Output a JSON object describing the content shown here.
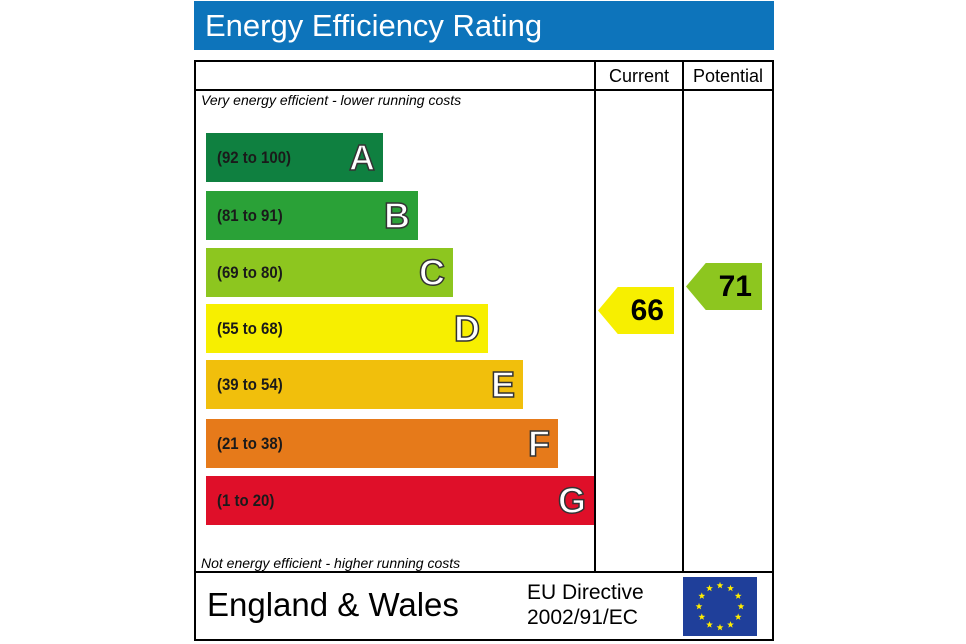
{
  "header": {
    "title": "Energy Efficiency Rating"
  },
  "columns": {
    "current": "Current",
    "potential": "Potential"
  },
  "notes": {
    "top": "Very energy efficient - lower running costs",
    "bottom": "Not energy efficient - higher running costs"
  },
  "footer": {
    "region": "England & Wales",
    "directive_line1": "EU Directive",
    "directive_line2": "2002/91/EC"
  },
  "chart_data": {
    "type": "bar",
    "title": "Energy Efficiency Rating",
    "bands": [
      {
        "letter": "A",
        "range": "(92 to 100)",
        "min": 92,
        "max": 100,
        "color": "#0f8040"
      },
      {
        "letter": "B",
        "range": "(81 to 91)",
        "min": 81,
        "max": 91,
        "color": "#2aa137"
      },
      {
        "letter": "C",
        "range": "(69 to 80)",
        "min": 69,
        "max": 80,
        "color": "#8dc61f"
      },
      {
        "letter": "D",
        "range": "(55 to 68)",
        "min": 55,
        "max": 68,
        "color": "#f7ef00"
      },
      {
        "letter": "E",
        "range": "(39 to 54)",
        "min": 39,
        "max": 54,
        "color": "#f1bf0c"
      },
      {
        "letter": "F",
        "range": "(21 to 38)",
        "min": 21,
        "max": 38,
        "color": "#e67a1a"
      },
      {
        "letter": "G",
        "range": "(1 to 20)",
        "min": 1,
        "max": 20,
        "color": "#df0f29"
      }
    ],
    "current": {
      "value": "66",
      "band": "D",
      "color": "#f7ef00"
    },
    "potential": {
      "value": "71",
      "band": "C",
      "color": "#8dc61f"
    }
  }
}
